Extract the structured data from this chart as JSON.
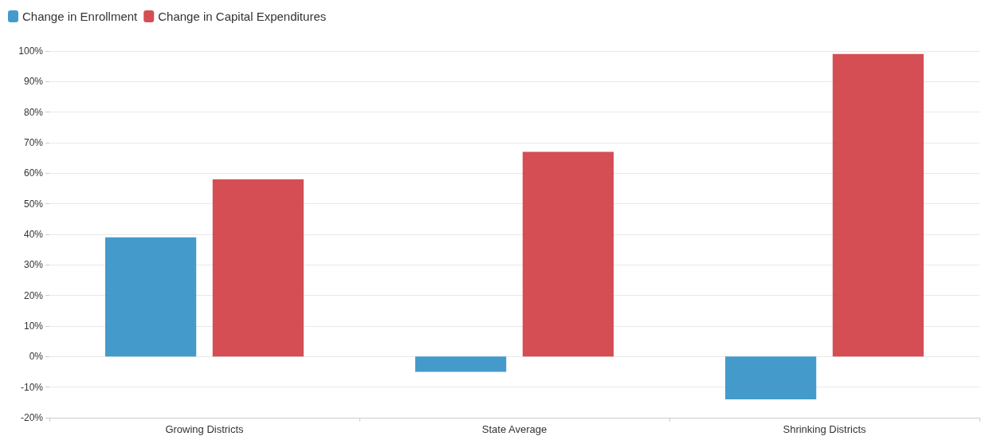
{
  "chart_data": {
    "type": "bar",
    "categories": [
      "Growing Districts",
      "State Average",
      "Shrinking Districts"
    ],
    "series": [
      {
        "name": "Change in Enrollment",
        "color": "#3a96c8",
        "values": [
          39,
          -5,
          -14
        ]
      },
      {
        "name": "Change in Capital Expenditures",
        "color": "#d2444b",
        "values": [
          58,
          67,
          99
        ]
      }
    ],
    "ylim": [
      -20,
      100
    ],
    "yticks": [
      {
        "value": -20,
        "label": "-20%"
      },
      {
        "value": -10,
        "label": "-10%"
      },
      {
        "value": 0,
        "label": "0%"
      },
      {
        "value": 10,
        "label": "10%"
      },
      {
        "value": 20,
        "label": "20%"
      },
      {
        "value": 30,
        "label": "30%"
      },
      {
        "value": 40,
        "label": "40%"
      },
      {
        "value": 50,
        "label": "50%"
      },
      {
        "value": 60,
        "label": "60%"
      },
      {
        "value": 70,
        "label": "70%"
      },
      {
        "value": 80,
        "label": "80%"
      },
      {
        "value": 90,
        "label": "90%"
      },
      {
        "value": 100,
        "label": "100%"
      }
    ],
    "grid": "y",
    "legend": "top left"
  }
}
